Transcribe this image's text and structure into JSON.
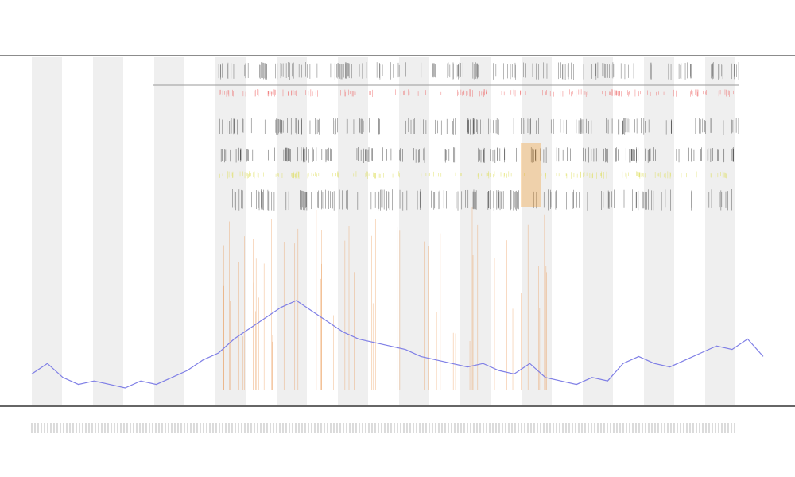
{
  "chart_data": {
    "type": "line",
    "categories": [
      null,
      null,
      null,
      null,
      null,
      null,
      null,
      null,
      null,
      null,
      null,
      null,
      null,
      null,
      null,
      null,
      null,
      null,
      null,
      null,
      null,
      null,
      null,
      null,
      null,
      null,
      null,
      null,
      null,
      null,
      null,
      null,
      null,
      null,
      null,
      null,
      null,
      null,
      null,
      null,
      null,
      null,
      null,
      null,
      null,
      null,
      null,
      null
    ],
    "series": [
      {
        "color": "#7f7fe6",
        "values": [
          9,
          12,
          8,
          6,
          7,
          6,
          5,
          7,
          6,
          8,
          10,
          13,
          15,
          19,
          22,
          25,
          28,
          30,
          27,
          24,
          21,
          19,
          18,
          17,
          16,
          14,
          13,
          12,
          11,
          12,
          10,
          9,
          12,
          8,
          7,
          6,
          8,
          7,
          12,
          14,
          12,
          11,
          13,
          15,
          17,
          16,
          19,
          14
        ]
      }
    ],
    "ylim": [
      0,
      100
    ]
  }
}
